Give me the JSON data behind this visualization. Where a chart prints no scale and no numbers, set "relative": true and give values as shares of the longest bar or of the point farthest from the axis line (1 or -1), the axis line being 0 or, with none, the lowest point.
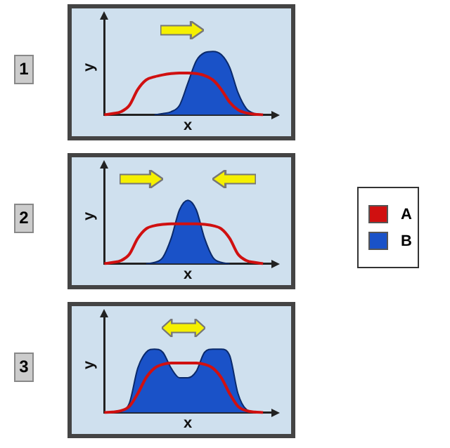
{
  "chart_data": [
    {
      "type": "area",
      "title": "1",
      "xlabel": "x",
      "ylabel": "y",
      "relative": true,
      "categories": [
        null,
        null,
        null,
        null,
        null,
        null,
        null,
        null,
        null,
        null,
        null,
        null,
        null,
        null,
        null,
        null,
        null,
        null,
        null,
        null,
        null
      ],
      "series": [
        {
          "type": "line",
          "color": "#d01010",
          "values": [
            0,
            0.02,
            0.05,
            0.15,
            0.4,
            0.55,
            0.6,
            0.63,
            0.65,
            0.66,
            0.66,
            0.65,
            0.62,
            0.55,
            0.4,
            0.2,
            0.08,
            0.03,
            0.01,
            0,
            null
          ]
        },
        {
          "type": "area",
          "color": "#1a52c8",
          "values": [
            null,
            null,
            null,
            null,
            null,
            null,
            0,
            0.02,
            0.05,
            0.15,
            0.5,
            0.85,
            0.98,
            1,
            0.95,
            0.75,
            0.35,
            0.1,
            0.02,
            0,
            null
          ]
        }
      ]
    },
    {
      "type": "area",
      "title": "2",
      "xlabel": "x",
      "ylabel": "y",
      "relative": true,
      "legend": "right",
      "categories": [
        null,
        null,
        null,
        null,
        null,
        null,
        null,
        null,
        null,
        null,
        null,
        null,
        null,
        null,
        null,
        null,
        null,
        null,
        null,
        null,
        null
      ],
      "series": [
        {
          "type": "line",
          "name": "A",
          "color": "#d01010",
          "values": [
            0,
            0.02,
            0.05,
            0.15,
            0.4,
            0.55,
            0.6,
            0.62,
            0.63,
            0.63,
            0.63,
            0.63,
            0.62,
            0.6,
            0.55,
            0.4,
            0.15,
            0.05,
            0.02,
            0,
            null
          ]
        },
        {
          "type": "area",
          "name": "B",
          "color": "#1a52c8",
          "values": [
            null,
            null,
            null,
            null,
            null,
            0,
            0.02,
            0.1,
            0.4,
            0.85,
            1,
            0.85,
            0.4,
            0.1,
            0.02,
            0,
            null,
            null,
            null,
            null,
            null
          ]
        }
      ]
    },
    {
      "type": "area",
      "title": "3",
      "xlabel": "x",
      "ylabel": "y",
      "relative": true,
      "categories": [
        null,
        null,
        null,
        null,
        null,
        null,
        null,
        null,
        null,
        null,
        null,
        null,
        null,
        null,
        null,
        null,
        null,
        null,
        null,
        null,
        null
      ],
      "series": [
        {
          "type": "line",
          "color": "#d01010",
          "values": [
            0,
            0.01,
            0.03,
            0.1,
            0.3,
            0.55,
            0.7,
            0.76,
            0.78,
            0.78,
            0.78,
            0.78,
            0.76,
            0.7,
            0.55,
            0.3,
            0.1,
            0.03,
            0.01,
            0,
            null
          ]
        },
        {
          "type": "area",
          "color": "#1a52c8",
          "values": [
            null,
            0,
            0.02,
            0.15,
            0.7,
            0.95,
            1,
            0.95,
            0.7,
            0.55,
            0.55,
            0.65,
            0.95,
            1,
            1,
            0.9,
            0.3,
            0.05,
            0.01,
            0,
            null
          ]
        }
      ]
    }
  ]
}
